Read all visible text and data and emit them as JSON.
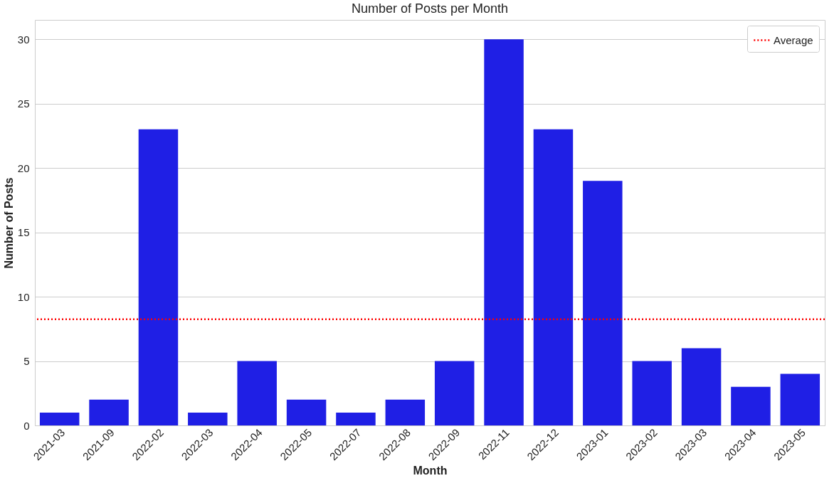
{
  "chart_data": {
    "type": "bar",
    "title": "Number of Posts per Month",
    "xlabel": "Month",
    "ylabel": "Number of Posts",
    "categories": [
      "2021-03",
      "2021-09",
      "2022-02",
      "2022-03",
      "2022-04",
      "2022-05",
      "2022-07",
      "2022-08",
      "2022-09",
      "2022-11",
      "2022-12",
      "2023-01",
      "2023-02",
      "2023-03",
      "2023-04",
      "2023-05"
    ],
    "values": [
      1,
      2,
      23,
      1,
      5,
      2,
      1,
      2,
      5,
      30,
      23,
      19,
      5,
      6,
      3,
      4
    ],
    "color": "#1f1fe5",
    "ylim": [
      0,
      31.5
    ],
    "yticks": [
      0,
      5,
      10,
      15,
      20,
      25,
      30
    ],
    "grid": "y",
    "ref_lines": [
      {
        "axis": "y",
        "value": 8.25,
        "label": "Average",
        "color": "#ff0000",
        "line_style": "dotted"
      }
    ],
    "legend": "top right"
  }
}
